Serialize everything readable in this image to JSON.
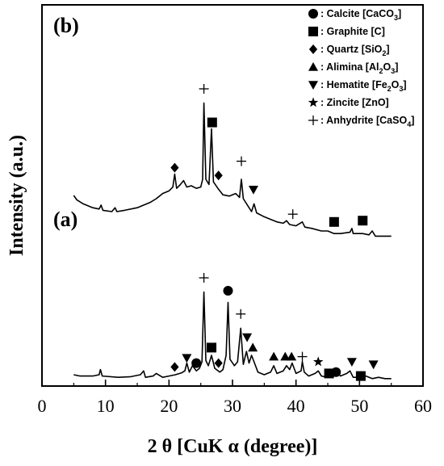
{
  "chart_data": {
    "type": "line",
    "xlabel": "2 θ  [CuK α  (degree)]",
    "ylabel": "Intensity (a.u.)",
    "xlim": [
      0,
      60
    ],
    "xticks": [
      0,
      10,
      20,
      30,
      40,
      50,
      60
    ],
    "legend_placement": "top-right",
    "legend": [
      {
        "symbol": "circle",
        "label": ": Calcite [CaCO",
        "sub": "3",
        "tail": "]"
      },
      {
        "symbol": "square",
        "label": ": Graphite [C]",
        "sub": "",
        "tail": ""
      },
      {
        "symbol": "diamond",
        "label": ": Quartz [SiO",
        "sub": "2",
        "tail": "]"
      },
      {
        "symbol": "triangle-up",
        "label": ": Alimina [Al",
        "sub": "2",
        "tail": "O",
        "sub2": "3",
        "tail2": "]"
      },
      {
        "symbol": "triangle-down",
        "label": ": Hematite [Fe",
        "sub": "2",
        "tail": "O",
        "sub2": "3",
        "tail2": "]"
      },
      {
        "symbol": "star",
        "label": ": Zincite [ZnO]",
        "sub": "",
        "tail": ""
      },
      {
        "symbol": "plus",
        "label": ": Anhydrite [CaSO",
        "sub": "4",
        "tail": "]"
      }
    ],
    "panels": [
      {
        "label": "(b)",
        "baseline": 0,
        "points": [
          [
            5,
            5
          ],
          [
            5.5,
            -2
          ],
          [
            6.5,
            -8
          ],
          [
            8,
            -14
          ],
          [
            9,
            -16
          ],
          [
            9.3,
            -10
          ],
          [
            9.6,
            -18
          ],
          [
            11,
            -20
          ],
          [
            11.5,
            -14
          ],
          [
            11.8,
            -20
          ],
          [
            13,
            -18
          ],
          [
            15,
            -14
          ],
          [
            17,
            -6
          ],
          [
            18,
            0
          ],
          [
            19,
            8
          ],
          [
            20,
            12
          ],
          [
            20.6,
            18
          ],
          [
            20.9,
            38
          ],
          [
            21.2,
            16
          ],
          [
            21.8,
            22
          ],
          [
            22.3,
            28
          ],
          [
            22.8,
            18
          ],
          [
            23.5,
            20
          ],
          [
            24.3,
            16
          ],
          [
            25,
            18
          ],
          [
            25.3,
            30
          ],
          [
            25.5,
            148
          ],
          [
            25.8,
            30
          ],
          [
            26.3,
            22
          ],
          [
            26.7,
            108
          ],
          [
            27,
            26
          ],
          [
            27.7,
            16
          ],
          [
            28.5,
            6
          ],
          [
            29.5,
            4
          ],
          [
            30.5,
            8
          ],
          [
            31.1,
            2
          ],
          [
            31.4,
            30
          ],
          [
            31.7,
            0
          ],
          [
            33,
            -20
          ],
          [
            33.4,
            -8
          ],
          [
            33.8,
            -22
          ],
          [
            35,
            -28
          ],
          [
            36,
            -32
          ],
          [
            37,
            -36
          ],
          [
            38,
            -38
          ],
          [
            38.5,
            -34
          ],
          [
            39,
            -40
          ],
          [
            40,
            -42
          ],
          [
            41,
            -36
          ],
          [
            41.4,
            -44
          ],
          [
            42.5,
            -46
          ],
          [
            44,
            -50
          ],
          [
            45,
            -50
          ],
          [
            46,
            -54
          ],
          [
            47,
            -54
          ],
          [
            48.5,
            -52
          ],
          [
            48.8,
            -46
          ],
          [
            49,
            -54
          ],
          [
            50.5,
            -54
          ],
          [
            51.5,
            -56
          ],
          [
            52,
            -50
          ],
          [
            52.5,
            -58
          ],
          [
            54,
            -58
          ],
          [
            55,
            -58
          ]
        ],
        "markers": [
          {
            "symbol": "plus",
            "x": 25.5,
            "y": 170
          },
          {
            "symbol": "square",
            "x": 26.8,
            "y": 118
          },
          {
            "symbol": "diamond",
            "x": 20.9,
            "y": 48
          },
          {
            "symbol": "diamond",
            "x": 27.8,
            "y": 36
          },
          {
            "symbol": "plus",
            "x": 31.4,
            "y": 58
          },
          {
            "symbol": "triangle-down",
            "x": 33.3,
            "y": 14
          },
          {
            "symbol": "plus",
            "x": 39.5,
            "y": -24
          },
          {
            "symbol": "square",
            "x": 46,
            "y": -36
          },
          {
            "symbol": "square",
            "x": 50.5,
            "y": -34
          }
        ]
      },
      {
        "label": "(a)",
        "baseline": 0,
        "points": [
          [
            5,
            0
          ],
          [
            6,
            -2
          ],
          [
            8,
            -2
          ],
          [
            9,
            0
          ],
          [
            9.2,
            8
          ],
          [
            9.5,
            -2
          ],
          [
            12,
            -4
          ],
          [
            14,
            -3
          ],
          [
            15.5,
            0
          ],
          [
            16,
            6
          ],
          [
            16.3,
            -4
          ],
          [
            17.5,
            -2
          ],
          [
            18,
            2
          ],
          [
            19,
            -4
          ],
          [
            20,
            -2
          ],
          [
            21,
            0
          ],
          [
            22,
            3
          ],
          [
            22.5,
            6
          ],
          [
            22.8,
            18
          ],
          [
            23.2,
            4
          ],
          [
            23.7,
            14
          ],
          [
            24.3,
            6
          ],
          [
            24.8,
            10
          ],
          [
            25.2,
            20
          ],
          [
            25.5,
            128
          ],
          [
            25.8,
            22
          ],
          [
            26.2,
            14
          ],
          [
            26.7,
            30
          ],
          [
            27.2,
            10
          ],
          [
            28,
            4
          ],
          [
            28.5,
            8
          ],
          [
            29,
            30
          ],
          [
            29.3,
            112
          ],
          [
            29.6,
            24
          ],
          [
            30.3,
            14
          ],
          [
            30.8,
            20
          ],
          [
            31.3,
            72
          ],
          [
            31.7,
            16
          ],
          [
            32.2,
            36
          ],
          [
            32.6,
            18
          ],
          [
            33,
            30
          ],
          [
            33.4,
            20
          ],
          [
            34,
            4
          ],
          [
            35,
            0
          ],
          [
            36,
            4
          ],
          [
            36.5,
            14
          ],
          [
            37,
            2
          ],
          [
            38,
            6
          ],
          [
            38.5,
            14
          ],
          [
            39,
            8
          ],
          [
            39.4,
            18
          ],
          [
            40,
            2
          ],
          [
            40.8,
            6
          ],
          [
            41,
            20
          ],
          [
            41.3,
            4
          ],
          [
            42,
            -2
          ],
          [
            43,
            2
          ],
          [
            43.5,
            6
          ],
          [
            44,
            -2
          ],
          [
            45,
            -4
          ],
          [
            46,
            -2
          ],
          [
            46.5,
            4
          ],
          [
            47,
            -2
          ],
          [
            48,
            2
          ],
          [
            48.5,
            6
          ],
          [
            49,
            -4
          ],
          [
            50,
            -4
          ],
          [
            51,
            -2
          ],
          [
            52,
            -6
          ],
          [
            53,
            -4
          ],
          [
            54,
            -6
          ],
          [
            55,
            -6
          ]
        ],
        "markers": [
          {
            "symbol": "plus",
            "x": 25.5,
            "y": 150
          },
          {
            "symbol": "circle",
            "x": 29.3,
            "y": 130
          },
          {
            "symbol": "plus",
            "x": 31.3,
            "y": 94
          },
          {
            "symbol": "square",
            "x": 26.7,
            "y": 42
          },
          {
            "symbol": "circle",
            "x": 24.3,
            "y": 18
          },
          {
            "symbol": "triangle-down",
            "x": 22.8,
            "y": 26
          },
          {
            "symbol": "diamond",
            "x": 20.9,
            "y": 12
          },
          {
            "symbol": "diamond",
            "x": 27.8,
            "y": 18
          },
          {
            "symbol": "triangle-down",
            "x": 32.3,
            "y": 58
          },
          {
            "symbol": "triangle-up",
            "x": 33.2,
            "y": 42
          },
          {
            "symbol": "triangle-up",
            "x": 36.5,
            "y": 28
          },
          {
            "symbol": "triangle-up",
            "x": 38.3,
            "y": 28
          },
          {
            "symbol": "triangle-up",
            "x": 39.3,
            "y": 28
          },
          {
            "symbol": "plus",
            "x": 41,
            "y": 28
          },
          {
            "symbol": "star",
            "x": 43.5,
            "y": 20
          },
          {
            "symbol": "circle",
            "x": 46.3,
            "y": 4
          },
          {
            "symbol": "square",
            "x": 45.2,
            "y": 2
          },
          {
            "symbol": "square",
            "x": 50.2,
            "y": -2
          },
          {
            "symbol": "triangle-down",
            "x": 48.8,
            "y": 20
          },
          {
            "symbol": "triangle-down",
            "x": 52.2,
            "y": 16
          }
        ]
      }
    ]
  }
}
